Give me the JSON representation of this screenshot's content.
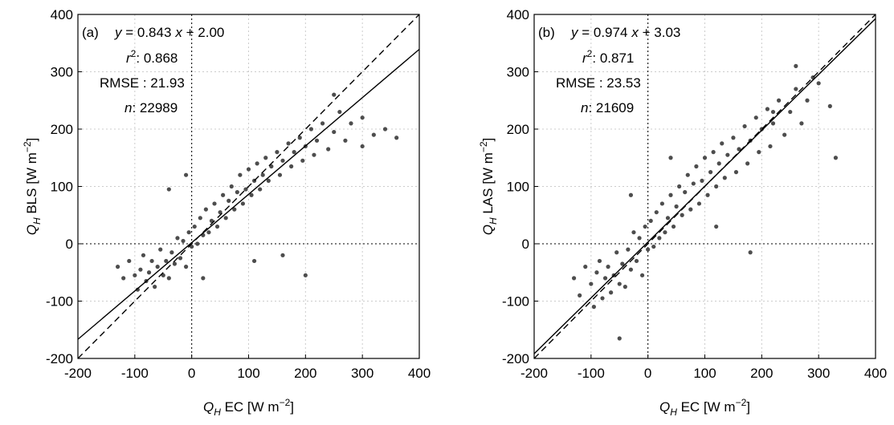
{
  "chart_data": [
    {
      "type": "scatter",
      "panel_label": "(a)",
      "xlabel": [
        "Q",
        "H",
        " EC [W m",
        "−2",
        "]"
      ],
      "ylabel": [
        "Q",
        "H",
        " BLS [W m",
        "−2",
        "]"
      ],
      "equation": [
        "y",
        " = ",
        "x",
        " + "
      ],
      "fit": {
        "slope": 0.843,
        "intercept": {
          "value": 2,
          "label": "2.00"
        }
      },
      "r2_label": [
        "r",
        "2",
        ": "
      ],
      "r2": 0.868,
      "rmse_label": "RMSE : ",
      "rmse": 21.93,
      "n_label": [
        "n",
        ": "
      ],
      "n": 22989,
      "color": "#4d4d4d",
      "xlim": [
        -200,
        400
      ],
      "ylim": [
        -200,
        400
      ],
      "xticks": [
        -200,
        -100,
        0,
        100,
        200,
        300,
        400
      ],
      "yticks": [
        -200,
        -100,
        0,
        100,
        200,
        300,
        400
      ],
      "grid": true,
      "x": [
        -130,
        -120,
        -110,
        -100,
        -95,
        -90,
        -85,
        -80,
        -75,
        -70,
        -65,
        -60,
        -55,
        -50,
        -45,
        -40,
        -35,
        -30,
        -25,
        -20,
        -15,
        -10,
        -5,
        0,
        5,
        10,
        15,
        20,
        25,
        30,
        35,
        40,
        45,
        50,
        55,
        60,
        65,
        70,
        75,
        80,
        85,
        90,
        95,
        100,
        105,
        110,
        115,
        120,
        125,
        130,
        135,
        140,
        150,
        155,
        160,
        170,
        175,
        180,
        190,
        195,
        200,
        210,
        215,
        220,
        230,
        240,
        250,
        260,
        270,
        280,
        300,
        320,
        340,
        360,
        -40,
        -10,
        160,
        200,
        110,
        250,
        300,
        20
      ],
      "values": [
        -40,
        -60,
        -30,
        -55,
        -80,
        -45,
        -20,
        -65,
        -50,
        -30,
        -75,
        -40,
        -10,
        -55,
        -30,
        -60,
        -15,
        -35,
        10,
        -25,
        5,
        -40,
        20,
        -5,
        30,
        0,
        45,
        15,
        60,
        20,
        40,
        70,
        30,
        55,
        85,
        45,
        75,
        100,
        60,
        90,
        120,
        70,
        95,
        130,
        85,
        110,
        140,
        95,
        120,
        150,
        110,
        135,
        160,
        120,
        145,
        175,
        135,
        160,
        185,
        145,
        170,
        200,
        155,
        180,
        210,
        165,
        195,
        230,
        180,
        210,
        220,
        190,
        200,
        185,
        95,
        120,
        -20,
        -55,
        -30,
        260,
        170,
        -60
      ]
    },
    {
      "type": "scatter",
      "panel_label": "(b)",
      "xlabel": [
        "Q",
        "H",
        " EC [W m",
        "−2",
        "]"
      ],
      "ylabel": [
        "Q",
        "H",
        " LAS [W m",
        "−2",
        "]"
      ],
      "equation": [
        "y",
        " = ",
        "x",
        " + "
      ],
      "fit": {
        "slope": 0.974,
        "intercept": 3.03
      },
      "r2_label": [
        "r",
        "2",
        ": "
      ],
      "r2": 0.871,
      "rmse_label": "RMSE : ",
      "rmse": 23.53,
      "n_label": [
        "n",
        ": "
      ],
      "n": 21609,
      "color": "#4d4d4d",
      "xlim": [
        -200,
        400
      ],
      "ylim": [
        -200,
        400
      ],
      "xticks": [
        -200,
        -100,
        0,
        100,
        200,
        300,
        400
      ],
      "yticks": [
        -200,
        -100,
        0,
        100,
        200,
        300,
        400
      ],
      "grid": true,
      "x": [
        -130,
        -120,
        -110,
        -100,
        -95,
        -90,
        -85,
        -80,
        -75,
        -70,
        -65,
        -60,
        -55,
        -50,
        -45,
        -40,
        -35,
        -30,
        -25,
        -20,
        -15,
        -10,
        -5,
        0,
        5,
        10,
        15,
        20,
        25,
        30,
        35,
        40,
        45,
        50,
        55,
        60,
        65,
        70,
        75,
        80,
        85,
        90,
        95,
        100,
        105,
        110,
        115,
        120,
        125,
        130,
        135,
        140,
        150,
        155,
        160,
        170,
        175,
        180,
        190,
        195,
        200,
        210,
        215,
        220,
        230,
        240,
        250,
        260,
        270,
        280,
        300,
        320,
        330,
        -50,
        -30,
        40,
        120,
        180,
        220,
        260,
        290
      ],
      "values": [
        -60,
        -90,
        -40,
        -70,
        -110,
        -50,
        -30,
        -95,
        -60,
        -40,
        -85,
        -55,
        -15,
        -70,
        -35,
        -75,
        -10,
        -45,
        20,
        -30,
        10,
        -55,
        30,
        -10,
        40,
        -5,
        55,
        10,
        70,
        20,
        45,
        85,
        30,
        65,
        100,
        50,
        90,
        120,
        60,
        105,
        135,
        70,
        110,
        150,
        85,
        125,
        160,
        100,
        140,
        175,
        115,
        155,
        185,
        125,
        165,
        205,
        140,
        180,
        220,
        160,
        200,
        235,
        170,
        210,
        250,
        190,
        230,
        270,
        210,
        250,
        280,
        240,
        150,
        -165,
        85,
        150,
        30,
        -15,
        230,
        310,
        290
      ]
    }
  ]
}
